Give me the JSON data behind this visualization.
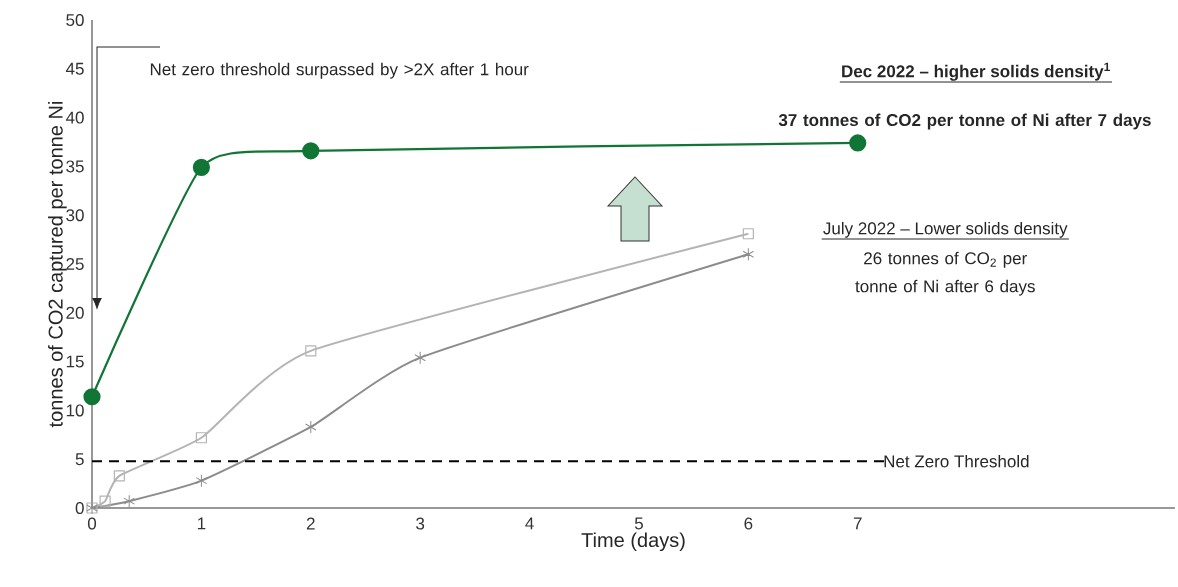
{
  "chart_data": {
    "type": "line",
    "xlabel": "Time (days)",
    "ylabel": "tonnes of CO2 captured per tonne Ni",
    "xlim": [
      0,
      9.9
    ],
    "xticks": [
      0,
      1,
      2,
      3,
      4,
      5,
      6,
      7
    ],
    "ylim": [
      0,
      50
    ],
    "yticks": [
      0,
      5,
      10,
      15,
      20,
      25,
      30,
      35,
      40,
      45,
      50
    ],
    "series": [
      {
        "color": "#107535",
        "marker": "circle",
        "x": [
          0,
          1,
          2,
          7
        ],
        "values": [
          11.4,
          34.9,
          36.6,
          37.4
        ]
      },
      {
        "color": "#b4b4b4",
        "marker": "square",
        "x": [
          0,
          0.12,
          0.25,
          1,
          2,
          6
        ],
        "values": [
          0,
          0.7,
          3.3,
          7.2,
          16.1,
          28.1
        ]
      },
      {
        "color": "#8c8c8c",
        "marker": "cross",
        "x": [
          0,
          0.34,
          1,
          2,
          3,
          6
        ],
        "values": [
          0,
          0.7,
          2.8,
          8.3,
          15.4,
          26.0
        ]
      }
    ],
    "ref_lines": [
      {
        "axis": "y",
        "value": 4.8,
        "label": "Net Zero Threshold",
        "line_style": "dashed",
        "color": "#000000"
      }
    ],
    "annotations": [
      "Dec 2022 – higher solids density$^{1}$",
      "37 tonnes of CO2 per tonne of Ni after 7 days",
      "July 2022 – Lower solids density",
      "26 tonnes of CO$_{2}$ per tonne of Ni after 6 days",
      "Net zero threshold surpassed by >2X after 1 hour"
    ]
  }
}
